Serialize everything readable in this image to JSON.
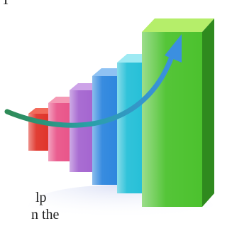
{
  "text": {
    "top": "T",
    "line1": "lp",
    "line2": "n the"
  }
}
